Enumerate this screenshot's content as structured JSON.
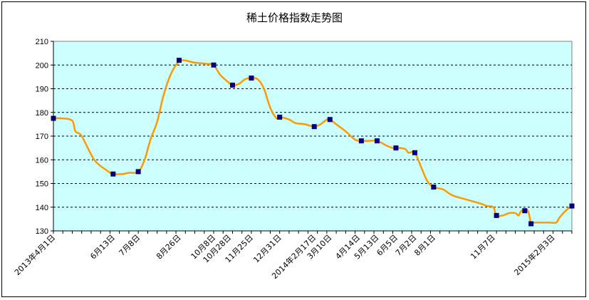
{
  "chart_data": {
    "type": "line",
    "title": "稀土价格指数走势图",
    "xlabel": "",
    "ylabel": "",
    "ylim": [
      130,
      210
    ],
    "yticks": [
      130,
      140,
      150,
      160,
      170,
      180,
      190,
      200,
      210
    ],
    "grid": true,
    "legend": "none",
    "colors": {
      "plot_background": "#ccffff",
      "line": "#ff9900",
      "marker": "#000080",
      "grid": "#000000"
    },
    "x_tick_labels": [
      {
        "label": "2013年4月1日",
        "index": 0
      },
      {
        "label": "6月13日",
        "index": 19
      },
      {
        "label": "7月8日",
        "index": 27
      },
      {
        "label": "8月26日",
        "index": 40
      },
      {
        "label": "10月8日",
        "index": 51
      },
      {
        "label": "10月28日",
        "index": 56
      },
      {
        "label": "11月25日",
        "index": 63
      },
      {
        "label": "12月31日",
        "index": 72
      },
      {
        "label": "2014年2月17日",
        "index": 83
      },
      {
        "label": "3月10日",
        "index": 88
      },
      {
        "label": "4月14日",
        "index": 97
      },
      {
        "label": "5月13日",
        "index": 103
      },
      {
        "label": "6月5日",
        "index": 109
      },
      {
        "label": "7月2日",
        "index": 115
      },
      {
        "label": "8月1日",
        "index": 121
      },
      {
        "label": "11月7日",
        "index": 140
      },
      {
        "label": "2015年2月3日",
        "index": 159
      }
    ],
    "n_points": 166,
    "series": [
      {
        "values": [
          [
            0,
            177.5
          ],
          [
            3,
            177.5
          ],
          [
            6,
            176.5
          ],
          [
            7,
            172
          ],
          [
            9,
            170
          ],
          [
            13,
            160
          ],
          [
            17,
            155.5
          ],
          [
            19,
            154
          ],
          [
            22,
            154
          ],
          [
            24,
            154.5
          ],
          [
            27,
            155
          ],
          [
            29,
            160
          ],
          [
            31,
            169
          ],
          [
            33,
            176
          ],
          [
            35,
            187
          ],
          [
            37,
            195
          ],
          [
            39,
            200
          ],
          [
            41,
            202
          ],
          [
            45,
            201
          ],
          [
            49,
            200.5
          ],
          [
            51,
            200
          ],
          [
            53,
            196
          ],
          [
            55,
            193.5
          ],
          [
            57,
            191.5
          ],
          [
            59,
            192
          ],
          [
            61,
            194
          ],
          [
            63,
            194.5
          ],
          [
            65,
            194
          ],
          [
            67,
            190
          ],
          [
            69,
            182
          ],
          [
            71,
            177.5
          ],
          [
            72,
            178
          ],
          [
            75,
            177
          ],
          [
            77,
            175.5
          ],
          [
            80,
            175
          ],
          [
            83,
            174
          ],
          [
            85,
            175
          ],
          [
            87,
            177
          ],
          [
            88,
            177
          ],
          [
            90,
            175
          ],
          [
            93,
            172
          ],
          [
            96,
            168.5
          ],
          [
            98,
            168
          ],
          [
            100,
            168
          ],
          [
            103,
            168
          ],
          [
            106,
            166
          ],
          [
            108,
            165
          ],
          [
            110,
            165
          ],
          [
            112,
            164.5
          ],
          [
            113,
            163
          ],
          [
            115,
            163
          ],
          [
            117,
            157
          ],
          [
            119,
            151
          ],
          [
            121,
            148.5
          ],
          [
            124,
            147.5
          ],
          [
            127,
            145
          ],
          [
            132,
            143
          ],
          [
            136,
            141.5
          ],
          [
            138,
            140.5
          ],
          [
            140,
            140
          ],
          [
            141,
            136.5
          ],
          [
            143,
            136.5
          ],
          [
            145,
            137.5
          ],
          [
            147,
            137.5
          ],
          [
            148,
            136.5
          ],
          [
            149,
            138.5
          ],
          [
            151,
            138.5
          ],
          [
            152,
            133
          ],
          [
            153,
            133.5
          ],
          [
            156,
            133.5
          ],
          [
            158,
            133.5
          ],
          [
            160,
            133.5
          ],
          [
            161,
            135.5
          ],
          [
            163,
            138.5
          ],
          [
            165,
            140.5
          ]
        ],
        "markers": [
          [
            0,
            177.5
          ],
          [
            19,
            154
          ],
          [
            27,
            155
          ],
          [
            40,
            202
          ],
          [
            51,
            200
          ],
          [
            57,
            191.5
          ],
          [
            63,
            194.5
          ],
          [
            72,
            178
          ],
          [
            83,
            174
          ],
          [
            88,
            177
          ],
          [
            98,
            168
          ],
          [
            103,
            168
          ],
          [
            109,
            165
          ],
          [
            115,
            163
          ],
          [
            121,
            148.5
          ],
          [
            141,
            136.5
          ],
          [
            150,
            138.5
          ],
          [
            152,
            133
          ],
          [
            165,
            140.5
          ]
        ]
      }
    ]
  }
}
